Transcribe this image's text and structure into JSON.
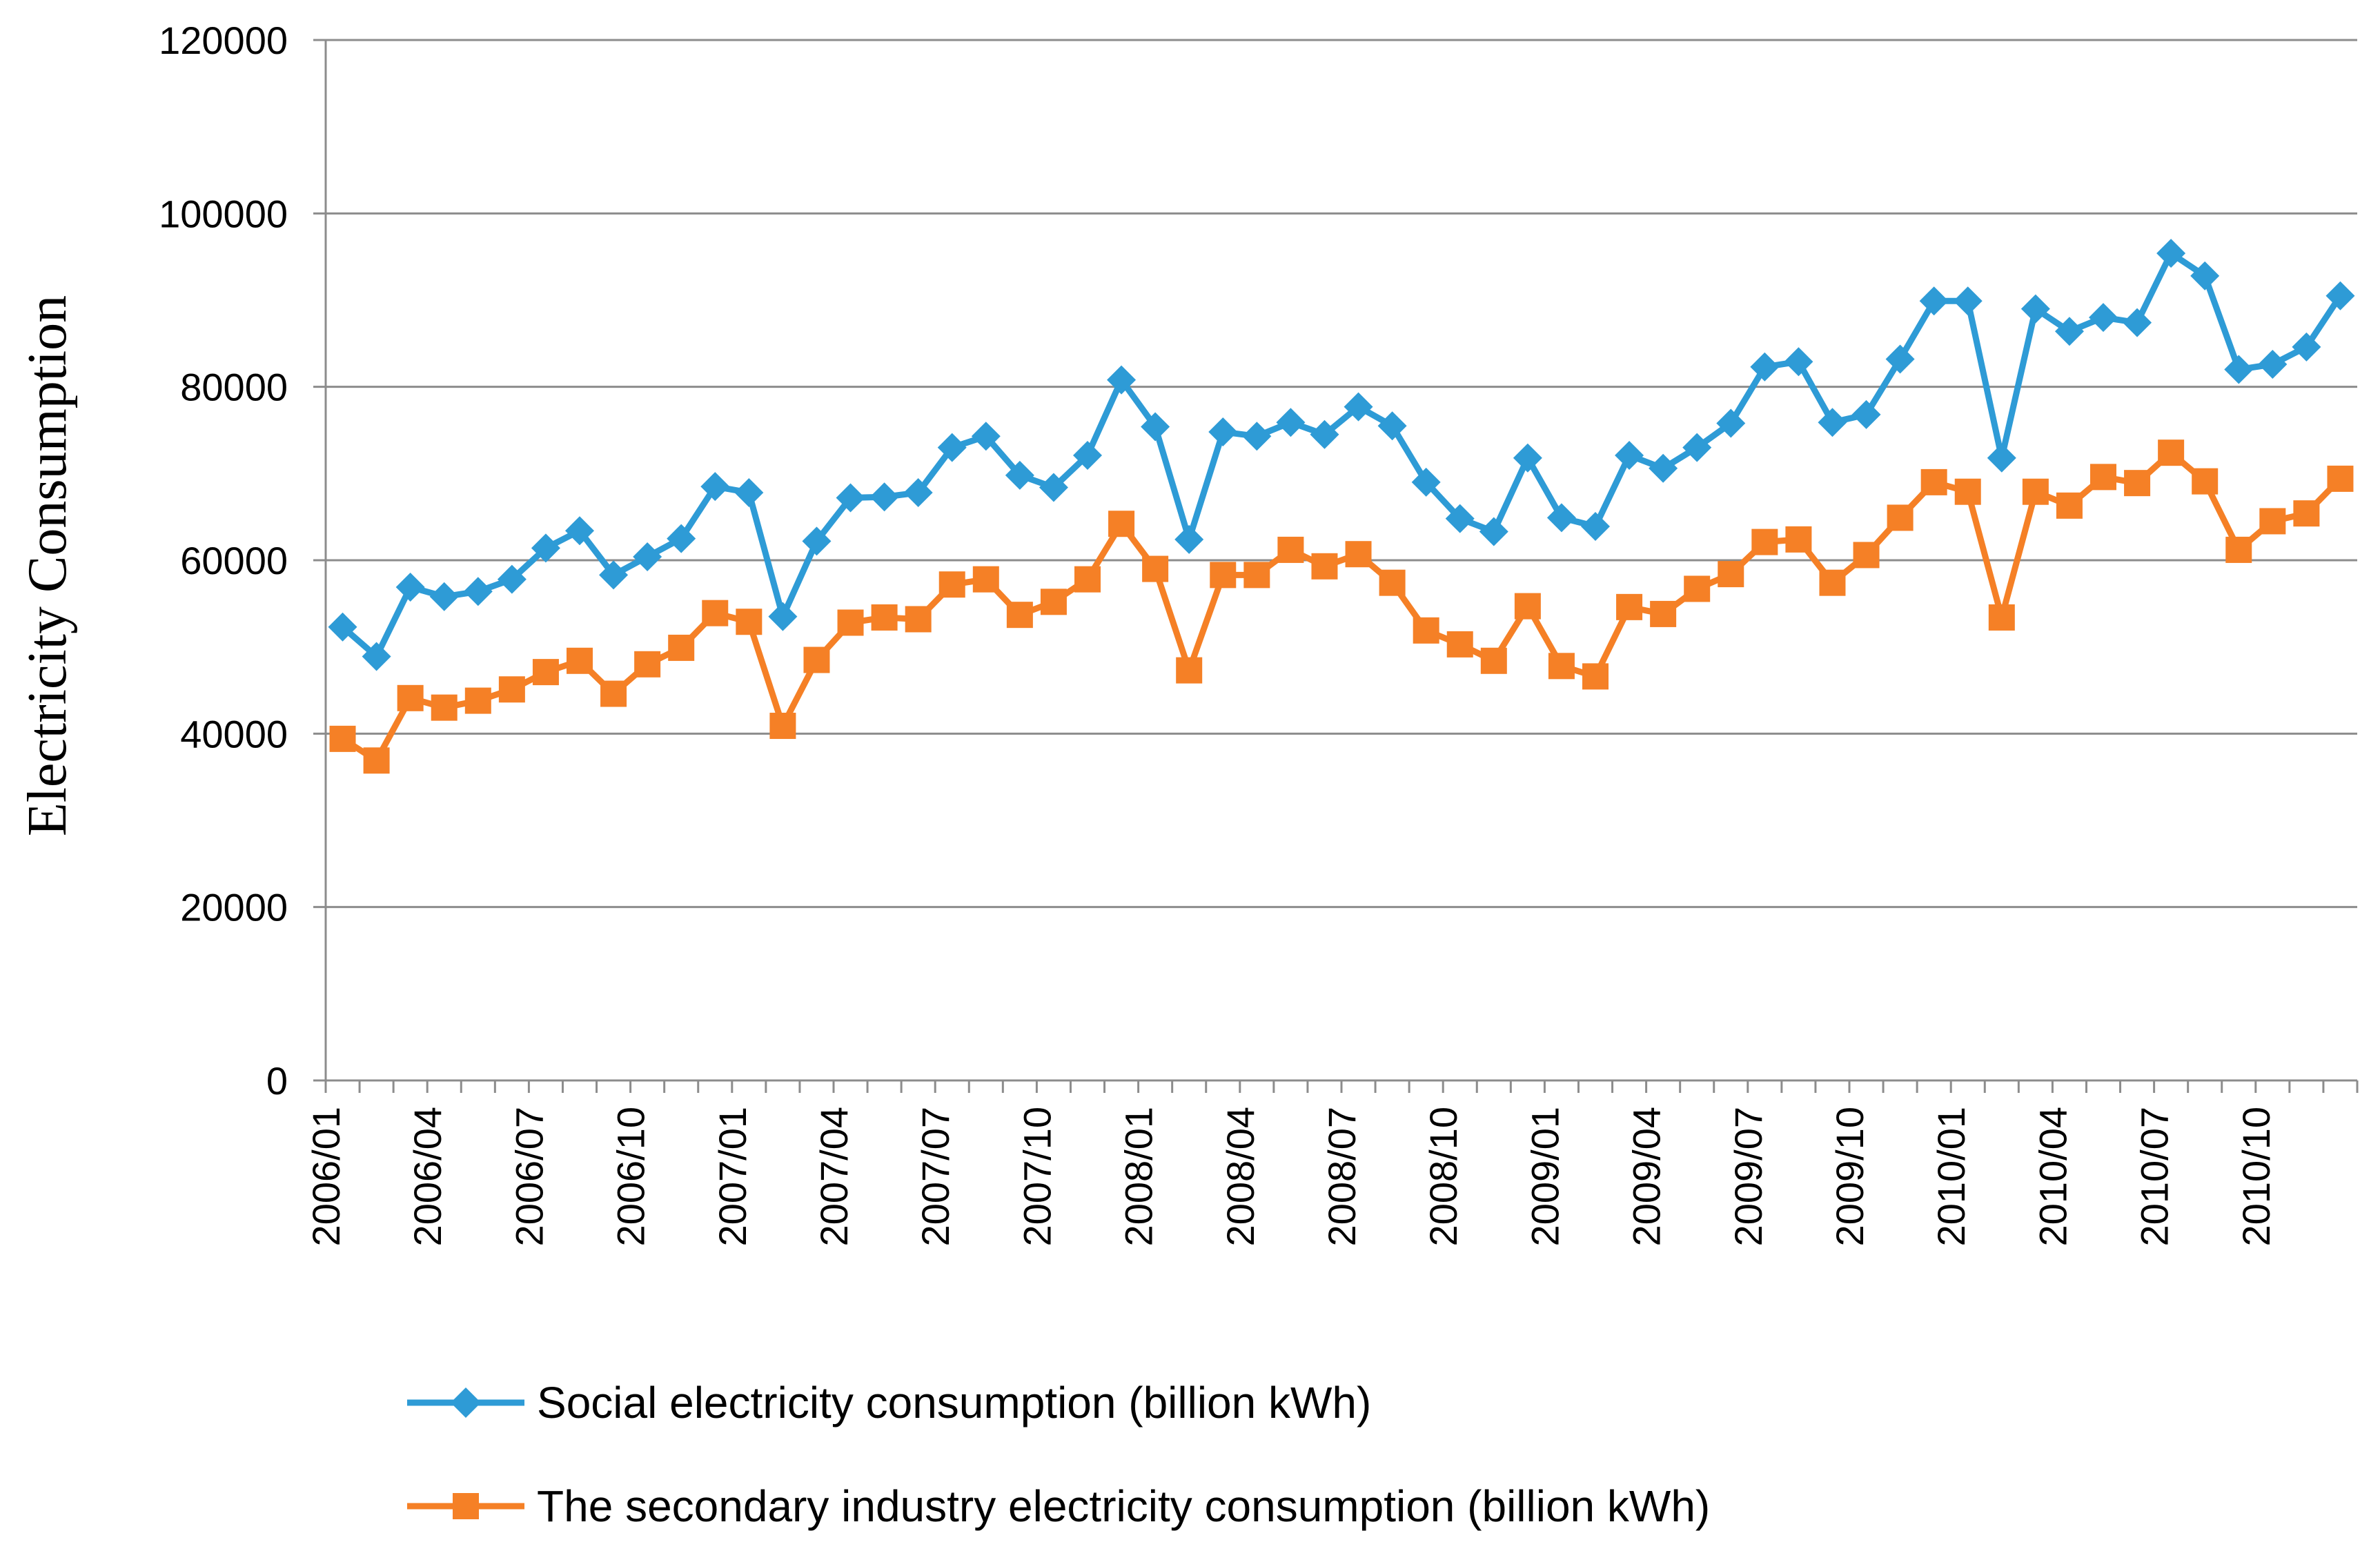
{
  "chart_data": {
    "type": "line",
    "title": "",
    "xlabel": "",
    "ylabel": "Electricity Consumption",
    "ylim": [
      0,
      120000
    ],
    "ytick_step": 20000,
    "grid": "horizontal",
    "legend_position": "bottom",
    "x": [
      "2006/01",
      "2006/02",
      "2006/03",
      "2006/04",
      "2006/05",
      "2006/06",
      "2006/07",
      "2006/08",
      "2006/09",
      "2006/10",
      "2006/11",
      "2006/12",
      "2007/01",
      "2007/02",
      "2007/03",
      "2007/04",
      "2007/05",
      "2007/06",
      "2007/07",
      "2007/08",
      "2007/09",
      "2007/10",
      "2007/11",
      "2007/12",
      "2008/01",
      "2008/02",
      "2008/03",
      "2008/04",
      "2008/05",
      "2008/06",
      "2008/07",
      "2008/08",
      "2008/09",
      "2008/10",
      "2008/11",
      "2008/12",
      "2009/01",
      "2009/02",
      "2009/03",
      "2009/04",
      "2009/05",
      "2009/06",
      "2009/07",
      "2009/08",
      "2009/09",
      "2009/10",
      "2009/11",
      "2009/12",
      "2010/01",
      "2010/02",
      "2010/03",
      "2010/04",
      "2010/05",
      "2010/06",
      "2010/07",
      "2010/08",
      "2010/09",
      "2010/10",
      "2010/11",
      "2010/12"
    ],
    "x_tick_labels": [
      "2006/01",
      "2006/04",
      "2006/07",
      "2006/10",
      "2007/01",
      "2007/04",
      "2007/07",
      "2007/10",
      "2008/01",
      "2008/04",
      "2008/07",
      "2008/10",
      "2009/01",
      "2009/04",
      "2009/07",
      "2009/10",
      "2010/01",
      "2010/04",
      "2010/07",
      "2010/10"
    ],
    "series": [
      {
        "name": "Social electricity consumption (billion kWh)",
        "color": "#2E9BD6",
        "marker": "diamond",
        "values": [
          52300,
          48900,
          56900,
          55800,
          56400,
          57800,
          61400,
          63400,
          58300,
          60400,
          62500,
          68500,
          67800,
          53500,
          62200,
          67200,
          67300,
          67800,
          73000,
          74300,
          69800,
          68400,
          72100,
          80800,
          75400,
          62400,
          74800,
          74300,
          75900,
          74500,
          77700,
          75500,
          69000,
          64800,
          63300,
          71800,
          64900,
          63900,
          72100,
          70600,
          73000,
          75800,
          82300,
          82900,
          75900,
          76800,
          83200,
          89900,
          89900,
          71800,
          89000,
          86400,
          88000,
          87400,
          95400,
          92800,
          82000,
          82600,
          84600,
          90500
        ]
      },
      {
        "name": "The secondary industry electricity consumption (billion kWh)",
        "color": "#F58026",
        "marker": "square",
        "values": [
          39400,
          36900,
          44100,
          43000,
          43800,
          45100,
          47100,
          48400,
          44600,
          48000,
          49900,
          53900,
          52900,
          40900,
          48500,
          52800,
          53400,
          53200,
          57200,
          57800,
          53700,
          55200,
          57800,
          64200,
          59000,
          47300,
          58300,
          58300,
          61200,
          59300,
          60700,
          57400,
          51900,
          50300,
          48400,
          54700,
          47800,
          46600,
          54600,
          53800,
          56700,
          58400,
          62100,
          62400,
          57400,
          60600,
          64900,
          69000,
          67900,
          53400,
          67900,
          66300,
          69600,
          68900,
          72400,
          69100,
          61200,
          64500,
          65400,
          69400
        ]
      }
    ]
  }
}
